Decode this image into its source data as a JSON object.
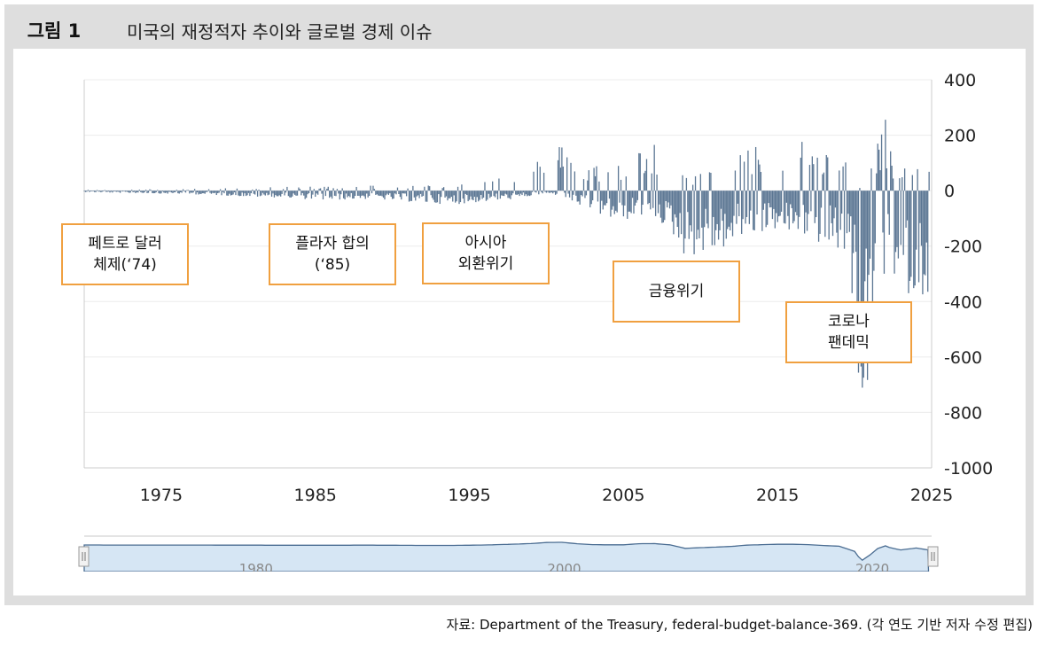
{
  "figure": {
    "label": "그림 1",
    "title": "미국의 재정적자 추이와 글로벌 경제 이슈",
    "source": "자료: Department of the Treasury, federal-budget-balance-369. (각 연도 기반 저자 수정 편집)"
  },
  "annotations": [
    {
      "line1": "페트로 달러",
      "line2": "체제(‘74)"
    },
    {
      "line1": "플라자 합의",
      "line2": "(‘85)"
    },
    {
      "line1": "아시아",
      "line2": "외환위기"
    },
    {
      "line1": "금융위기",
      "line2": ""
    },
    {
      "line1": "코로나",
      "line2": "팬데믹"
    }
  ],
  "colors": {
    "bars": "#5b7693",
    "annotation_border": "#f0a040",
    "navigator_fill": "#d6e6f4",
    "navigator_line": "#4b6d92"
  },
  "chart_data": {
    "type": "bar",
    "title": "",
    "xlabel": "",
    "ylabel": "",
    "y_axis_side": "right",
    "ylim": [
      -1000,
      400
    ],
    "yticks": [
      400,
      200,
      0,
      -200,
      -400,
      -600,
      -800,
      -1000
    ],
    "xlim": [
      1970,
      2025
    ],
    "xticks": [
      1975,
      1985,
      1995,
      2005,
      2015,
      2025
    ],
    "grid": "horizontal",
    "frequency": "monthly",
    "series": [
      {
        "values_description": "monthly budget balance, US$ billions (sampled envelope)",
        "x": [
          1970.0,
          1972.0,
          1974.0,
          1976.0,
          1978.0,
          1980.0,
          1982.0,
          1984.0,
          1986.0,
          1988.0,
          1990.0,
          1992.0,
          1994.0,
          1996.0,
          1997.0,
          1998.0,
          1999.0,
          2000.0,
          2001.0,
          2002.0,
          2003.0,
          2004.0,
          2005.0,
          2006.0,
          2007.0,
          2008.0,
          2009.0,
          2010.0,
          2011.0,
          2012.0,
          2013.0,
          2014.0,
          2015.0,
          2016.0,
          2017.0,
          2018.0,
          2019.0,
          2020.0,
          2020.3,
          2020.5,
          2021.0,
          2021.5,
          2022.0,
          2022.3,
          2023.0,
          2024.0,
          2024.8
        ],
        "max": [
          3,
          5,
          5,
          5,
          8,
          10,
          12,
          15,
          18,
          20,
          20,
          20,
          25,
          40,
          60,
          80,
          100,
          150,
          170,
          120,
          100,
          110,
          120,
          160,
          180,
          150,
          50,
          80,
          100,
          120,
          160,
          170,
          180,
          200,
          190,
          170,
          150,
          50,
          20,
          0,
          100,
          200,
          300,
          150,
          100,
          200,
          100
        ],
        "min": [
          -5,
          -8,
          -10,
          -12,
          -15,
          -20,
          -25,
          -30,
          -35,
          -30,
          -35,
          -45,
          -50,
          -40,
          -35,
          -30,
          -20,
          -10,
          -20,
          -50,
          -80,
          -100,
          -110,
          -90,
          -100,
          -140,
          -240,
          -230,
          -220,
          -200,
          -170,
          -150,
          -140,
          -160,
          -170,
          -200,
          -220,
          -410,
          -740,
          -860,
          -660,
          -400,
          -350,
          -300,
          -380,
          -370,
          -380
        ]
      }
    ],
    "navigator": {
      "xticks": [
        1980,
        2000,
        2020
      ]
    }
  }
}
